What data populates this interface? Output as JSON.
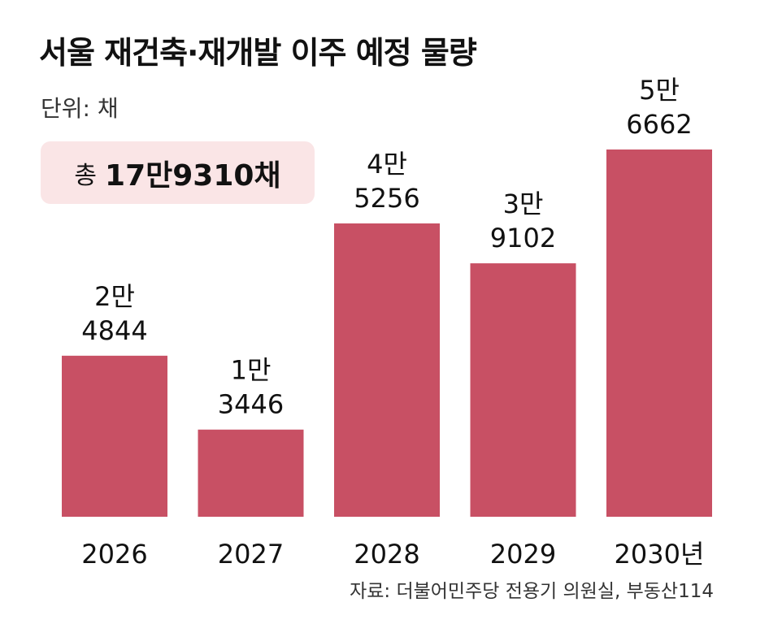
{
  "title": "서울 재건축·재개발 이주 예정 물량",
  "unit_label": "단위: 채",
  "total": {
    "label": "총",
    "value": "17만9310채"
  },
  "source": "자료: 더불어민주당 전용기 의원실, 부동산114",
  "colors": {
    "bar": "#c85064",
    "total_box": "#fae5e6",
    "text": "#1a1a1a"
  },
  "chart_data": {
    "type": "bar",
    "title": "서울 재건축·재개발 이주 예정 물량",
    "unit": "채",
    "categories": [
      "2026",
      "2027",
      "2028",
      "2029",
      "2030년"
    ],
    "values": [
      24844,
      13446,
      45256,
      39102,
      56662
    ],
    "data_labels": [
      [
        "2만",
        "4844"
      ],
      [
        "1만",
        "3446"
      ],
      [
        "4만",
        "5256"
      ],
      [
        "3만",
        "9102"
      ],
      [
        "5만",
        "6662"
      ]
    ],
    "ylim": [
      0,
      56662
    ],
    "grid": false,
    "legend": "none"
  }
}
